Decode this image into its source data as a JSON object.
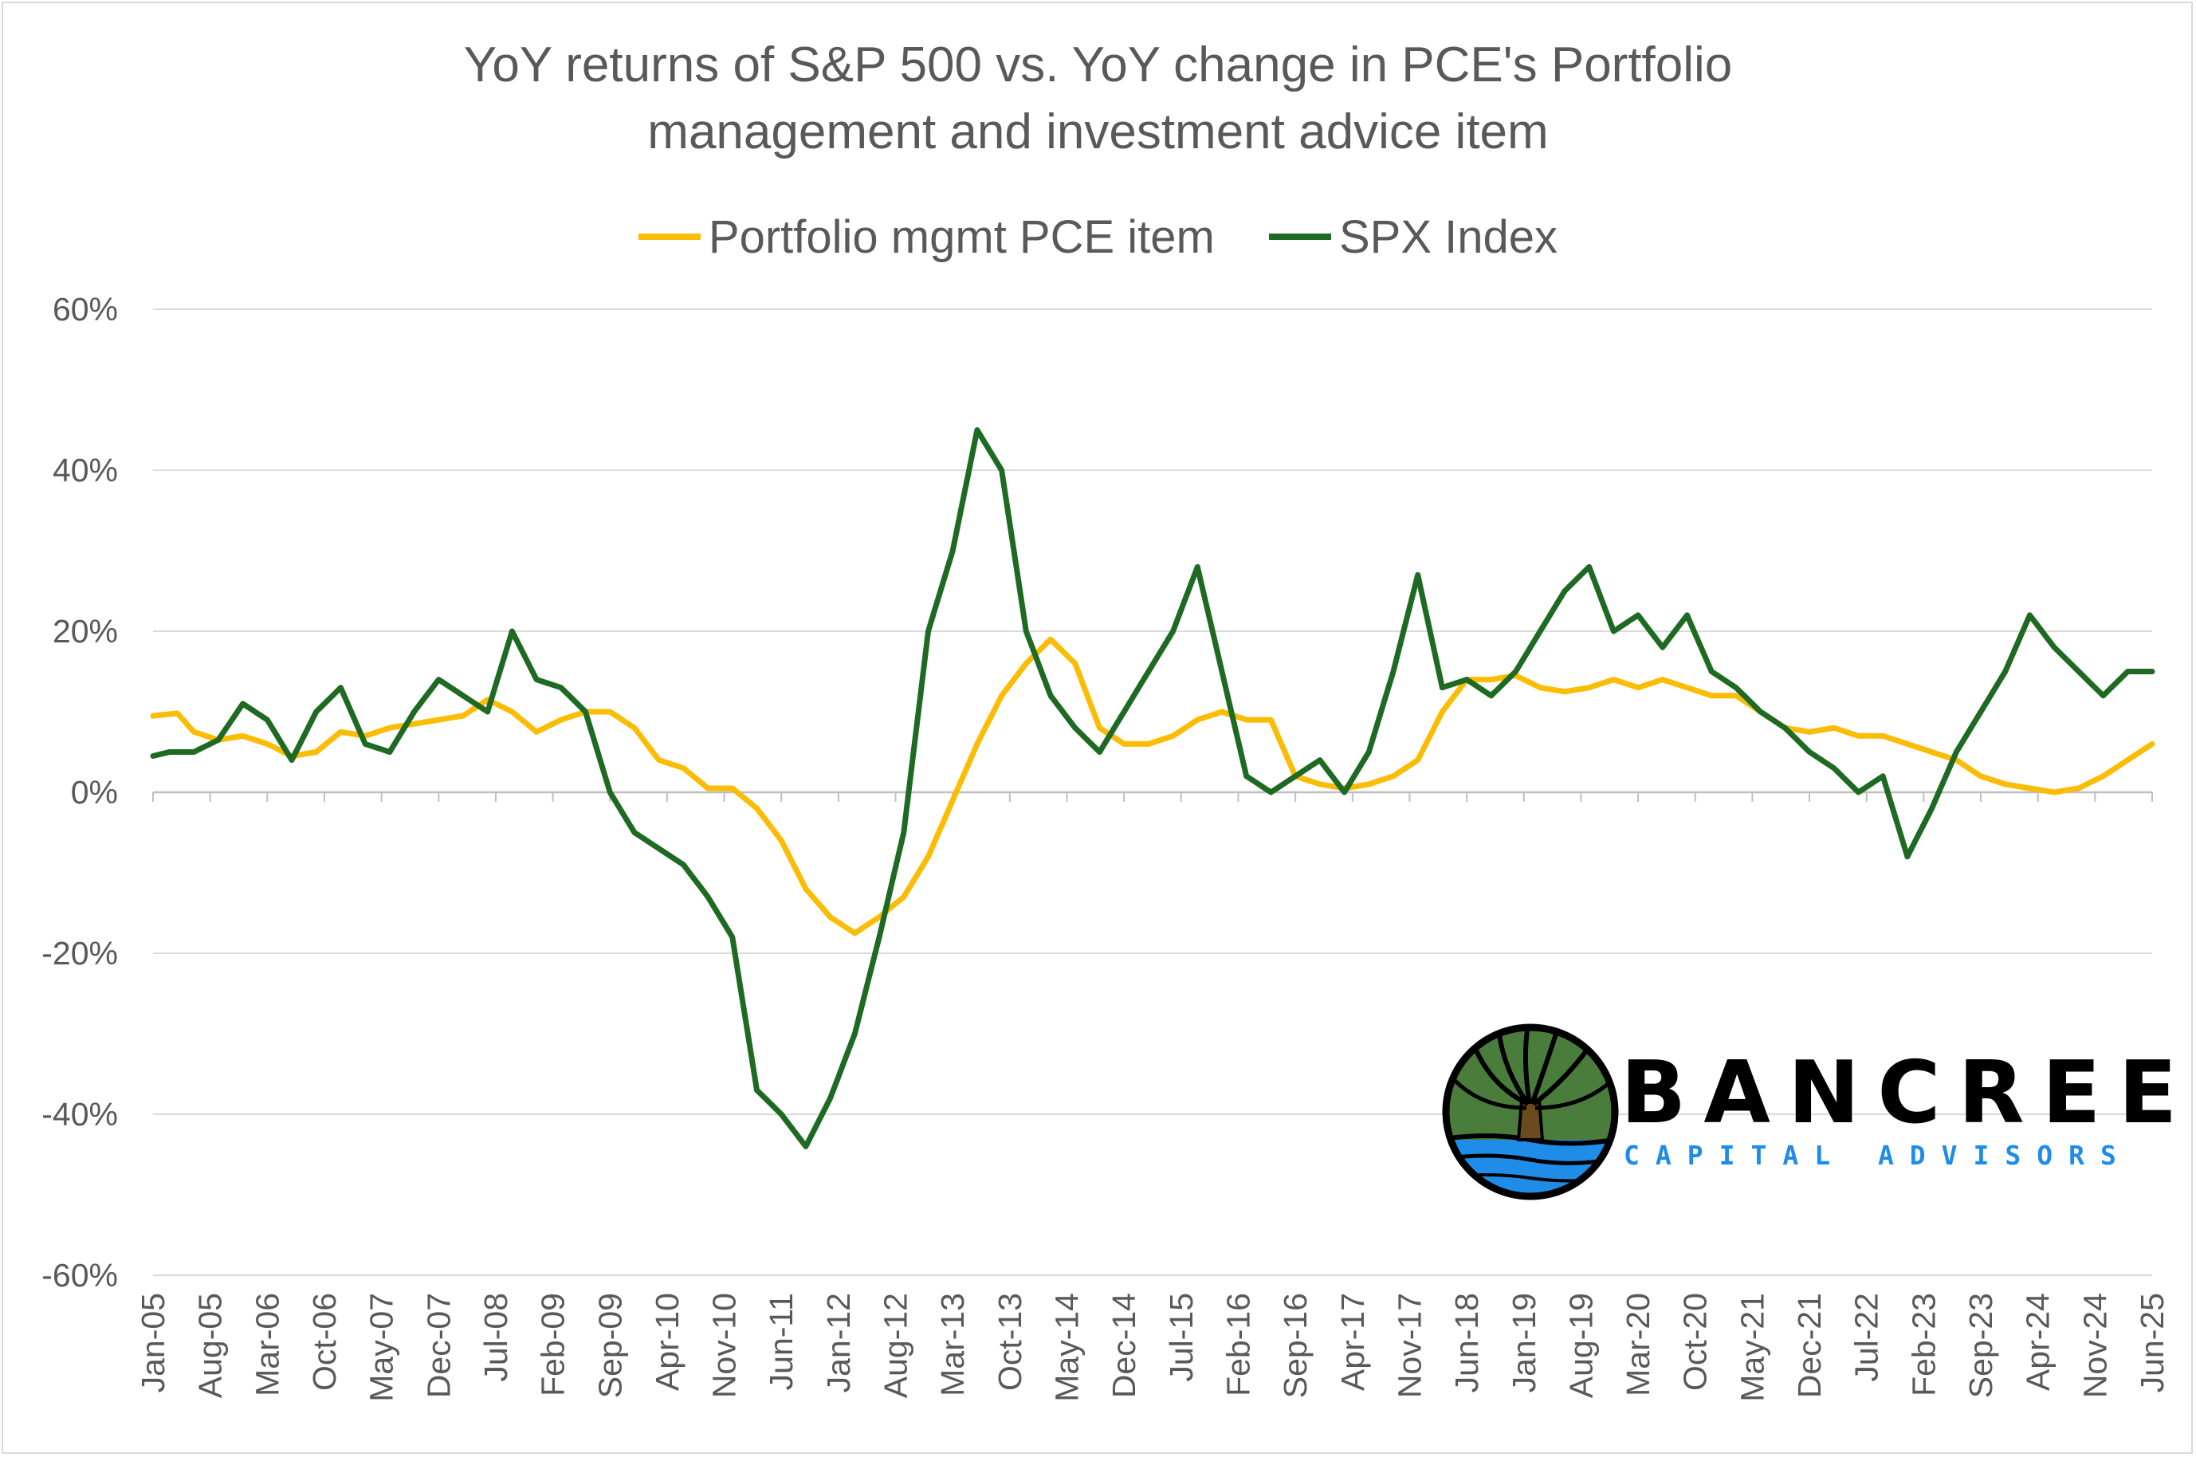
{
  "chart_data": {
    "type": "line",
    "title_lines": [
      "YoY returns of S&P 500 vs. YoY change in PCE's Portfolio",
      "management and investment advice item"
    ],
    "xlabel": "",
    "ylabel": "",
    "ylim": [
      -0.6,
      0.6
    ],
    "yticks": [
      -0.6,
      -0.4,
      -0.2,
      0,
      0.2,
      0.4,
      0.6
    ],
    "ytick_labels": [
      "-60%",
      "-40%",
      "-20%",
      "0%",
      "20%",
      "40%",
      "60%"
    ],
    "x_start": "Jan-05",
    "x_end": "Jun-25",
    "n_months": 246,
    "xtick_labels": [
      "Jan-05",
      "Aug-05",
      "Mar-06",
      "Oct-06",
      "May-07",
      "Dec-07",
      "Jul-08",
      "Feb-09",
      "Sep-09",
      "Apr-10",
      "Nov-10",
      "Jun-11",
      "Jan-12",
      "Aug-12",
      "Mar-13",
      "Oct-13",
      "May-14",
      "Dec-14",
      "Jul-15",
      "Feb-16",
      "Sep-16",
      "Apr-17",
      "Nov-17",
      "Jun-18",
      "Jan-19",
      "Aug-19",
      "Mar-20",
      "Oct-20",
      "May-21",
      "Dec-21",
      "Jul-22",
      "Feb-23",
      "Sep-23",
      "Apr-24",
      "Nov-24",
      "Jun-25"
    ],
    "xtick_step_months": 7,
    "gridlines": true,
    "legend_position": "top-center",
    "series": [
      {
        "name": "Portfolio mgmt PCE item",
        "color": "#fbbc04",
        "points": [
          [
            0,
            0.095
          ],
          [
            3,
            0.098
          ],
          [
            5,
            0.075
          ],
          [
            8,
            0.065
          ],
          [
            11,
            0.07
          ],
          [
            14,
            0.06
          ],
          [
            17,
            0.045
          ],
          [
            20,
            0.05
          ],
          [
            23,
            0.075
          ],
          [
            26,
            0.07
          ],
          [
            29,
            0.08
          ],
          [
            32,
            0.085
          ],
          [
            35,
            0.09
          ],
          [
            38,
            0.095
          ],
          [
            41,
            0.115
          ],
          [
            44,
            0.1
          ],
          [
            47,
            0.075
          ],
          [
            50,
            0.09
          ],
          [
            53,
            0.1
          ],
          [
            56,
            0.1
          ],
          [
            59,
            0.08
          ],
          [
            62,
            0.04
          ],
          [
            65,
            0.03
          ],
          [
            68,
            0.005
          ],
          [
            71,
            0.005
          ],
          [
            74,
            -0.02
          ],
          [
            77,
            -0.06
          ],
          [
            80,
            -0.12
          ],
          [
            83,
            -0.155
          ],
          [
            86,
            -0.175
          ],
          [
            89,
            -0.155
          ],
          [
            92,
            -0.13
          ],
          [
            95,
            -0.08
          ],
          [
            98,
            -0.01
          ],
          [
            101,
            0.06
          ],
          [
            104,
            0.12
          ],
          [
            107,
            0.16
          ],
          [
            110,
            0.19
          ],
          [
            113,
            0.16
          ],
          [
            116,
            0.08
          ],
          [
            119,
            0.06
          ],
          [
            122,
            0.06
          ],
          [
            125,
            0.07
          ],
          [
            128,
            0.09
          ],
          [
            131,
            0.1
          ],
          [
            134,
            0.09
          ],
          [
            137,
            0.09
          ],
          [
            140,
            0.02
          ],
          [
            143,
            0.01
          ],
          [
            146,
            0.005
          ],
          [
            149,
            0.01
          ],
          [
            152,
            0.02
          ],
          [
            155,
            0.04
          ],
          [
            158,
            0.1
          ],
          [
            161,
            0.14
          ],
          [
            164,
            0.14
          ],
          [
            167,
            0.145
          ],
          [
            170,
            0.13
          ],
          [
            173,
            0.125
          ],
          [
            176,
            0.13
          ],
          [
            179,
            0.14
          ],
          [
            182,
            0.13
          ],
          [
            185,
            0.14
          ],
          [
            188,
            0.13
          ],
          [
            191,
            0.12
          ],
          [
            194,
            0.12
          ],
          [
            197,
            0.1
          ],
          [
            200,
            0.08
          ],
          [
            203,
            0.075
          ],
          [
            206,
            0.08
          ],
          [
            209,
            0.07
          ],
          [
            212,
            0.07
          ],
          [
            215,
            0.06
          ],
          [
            218,
            0.05
          ],
          [
            221,
            0.04
          ],
          [
            224,
            0.02
          ],
          [
            227,
            0.01
          ],
          [
            230,
            0.005
          ],
          [
            233,
            0.0
          ],
          [
            236,
            0.005
          ],
          [
            239,
            0.02
          ],
          [
            242,
            0.04
          ],
          [
            245,
            0.06
          ]
        ]
      },
      {
        "name": "SPX Index",
        "color": "#1e6a23",
        "points": [
          [
            0,
            0.045
          ],
          [
            2,
            0.05
          ],
          [
            5,
            0.05
          ],
          [
            8,
            0.065
          ],
          [
            11,
            0.11
          ],
          [
            14,
            0.09
          ],
          [
            17,
            0.04
          ],
          [
            20,
            0.1
          ],
          [
            23,
            0.13
          ],
          [
            26,
            0.06
          ],
          [
            29,
            0.05
          ],
          [
            32,
            0.1
          ],
          [
            35,
            0.14
          ],
          [
            38,
            0.12
          ],
          [
            41,
            0.1
          ],
          [
            44,
            0.2
          ],
          [
            47,
            0.14
          ],
          [
            50,
            0.13
          ],
          [
            53,
            0.1
          ],
          [
            56,
            0.0
          ],
          [
            59,
            -0.05
          ],
          [
            62,
            -0.07
          ],
          [
            65,
            -0.09
          ],
          [
            68,
            -0.13
          ],
          [
            71,
            -0.18
          ],
          [
            74,
            -0.37
          ],
          [
            77,
            -0.4
          ],
          [
            80,
            -0.44
          ],
          [
            83,
            -0.38
          ],
          [
            86,
            -0.3
          ],
          [
            89,
            -0.18
          ],
          [
            92,
            -0.05
          ],
          [
            95,
            0.2
          ],
          [
            98,
            0.3
          ],
          [
            101,
            0.45
          ],
          [
            104,
            0.4
          ],
          [
            107,
            0.2
          ],
          [
            110,
            0.12
          ],
          [
            113,
            0.08
          ],
          [
            116,
            0.05
          ],
          [
            119,
            0.1
          ],
          [
            122,
            0.15
          ],
          [
            125,
            0.2
          ],
          [
            128,
            0.28
          ],
          [
            131,
            0.15
          ],
          [
            134,
            0.02
          ],
          [
            137,
            0.0
          ],
          [
            140,
            0.02
          ],
          [
            143,
            0.04
          ],
          [
            146,
            0.0
          ],
          [
            149,
            0.05
          ],
          [
            152,
            0.15
          ],
          [
            155,
            0.27
          ],
          [
            158,
            0.13
          ],
          [
            161,
            0.14
          ],
          [
            164,
            0.12
          ],
          [
            167,
            0.15
          ],
          [
            170,
            0.2
          ],
          [
            173,
            0.25
          ],
          [
            176,
            0.28
          ],
          [
            179,
            0.2
          ],
          [
            182,
            0.22
          ],
          [
            185,
            0.18
          ],
          [
            188,
            0.22
          ],
          [
            191,
            0.15
          ],
          [
            194,
            0.13
          ],
          [
            197,
            0.1
          ],
          [
            200,
            0.08
          ],
          [
            203,
            0.05
          ],
          [
            206,
            0.03
          ],
          [
            209,
            0.0
          ],
          [
            212,
            0.02
          ],
          [
            215,
            -0.08
          ],
          [
            218,
            -0.02
          ],
          [
            221,
            0.05
          ],
          [
            224,
            0.1
          ],
          [
            227,
            0.15
          ],
          [
            230,
            0.22
          ],
          [
            233,
            0.18
          ],
          [
            236,
            0.15
          ],
          [
            239,
            0.12
          ],
          [
            242,
            0.15
          ],
          [
            245,
            0.15
          ]
        ]
      }
    ]
  },
  "legend": {
    "items": [
      {
        "label": "Portfolio mgmt PCE item",
        "color": "#fbbc04"
      },
      {
        "label": "SPX Index",
        "color": "#1e6a23"
      }
    ]
  },
  "logo": {
    "name": "BANCREEK",
    "subtitle": "CAPITAL ADVISORS",
    "colors": {
      "tree_green": "#4a7d3b",
      "trunk": "#6b4a1e",
      "water": "#1f8ce8",
      "outline": "#000000"
    }
  }
}
